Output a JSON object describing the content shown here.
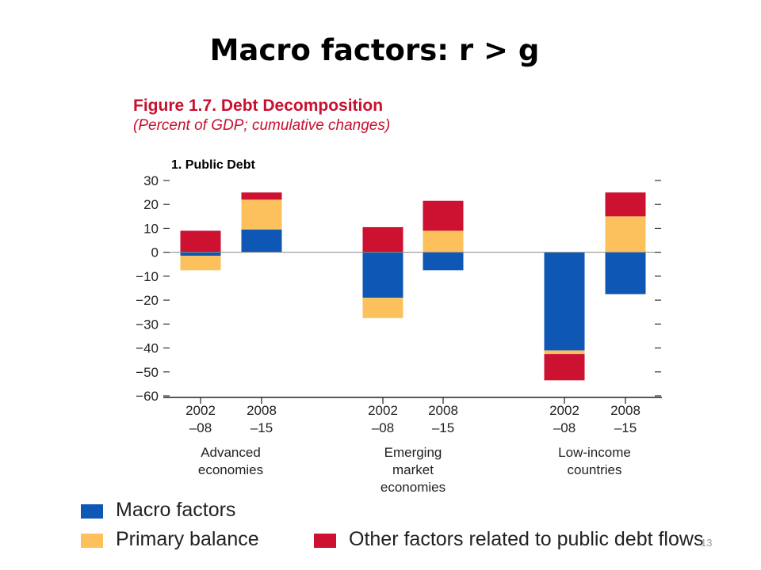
{
  "slide": {
    "title": "Macro factors: r > g",
    "page_number": "13"
  },
  "figure": {
    "title": "Figure 1.7. Debt Decomposition",
    "subtitle": "(Percent of GDP; cumulative changes)",
    "panel_title": "1. Public Debt"
  },
  "colors": {
    "macro": "#0f57b5",
    "primary": "#fcc15d",
    "other": "#cd1131"
  },
  "chart_data": {
    "type": "bar",
    "stacked": true,
    "title": "1. Public Debt",
    "ylim": [
      -60,
      30
    ],
    "yticks": [
      30,
      20,
      10,
      0,
      -10,
      -20,
      -30,
      -40,
      -50,
      -60
    ],
    "ytick_labels": [
      "30",
      "20",
      "10",
      "0",
      "−10",
      "−20",
      "−30",
      "−40",
      "−50",
      "−60"
    ],
    "grid": false,
    "zero_line": true,
    "legend_position": "bottom",
    "categories": [
      "2002–08",
      "2008–15",
      "2002–08",
      "2008–15",
      "2002–08",
      "2008–15"
    ],
    "category_lines": [
      [
        "2002",
        "–08"
      ],
      [
        "2008",
        "–15"
      ],
      [
        "2002",
        "–08"
      ],
      [
        "2008",
        "–15"
      ],
      [
        "2002",
        "–08"
      ],
      [
        "2008",
        "–15"
      ]
    ],
    "groups": [
      {
        "label_lines": [
          "Advanced",
          "economies"
        ],
        "categories": [
          0,
          1
        ]
      },
      {
        "label_lines": [
          "Emerging",
          "market",
          "economies"
        ],
        "categories": [
          2,
          3
        ]
      },
      {
        "label_lines": [
          "Low-income",
          "countries"
        ],
        "categories": [
          4,
          5
        ]
      }
    ],
    "series": [
      {
        "name": "Macro factors",
        "key": "macro",
        "values": [
          -1.5,
          9.5,
          -19,
          -7.5,
          -41,
          -17.5
        ]
      },
      {
        "name": "Primary balance",
        "key": "primary",
        "values": [
          -6,
          12.5,
          -8.5,
          9,
          -1.5,
          15
        ]
      },
      {
        "name": "Other factors related to public debt flows",
        "key": "other",
        "values": [
          9,
          3,
          10.5,
          12.5,
          -11,
          10
        ]
      }
    ]
  },
  "legend": {
    "items": [
      {
        "label": "Macro factors",
        "key": "macro"
      },
      {
        "label": "Primary balance",
        "key": "primary"
      },
      {
        "label": "Other factors related to public debt flows",
        "key": "other"
      }
    ]
  }
}
